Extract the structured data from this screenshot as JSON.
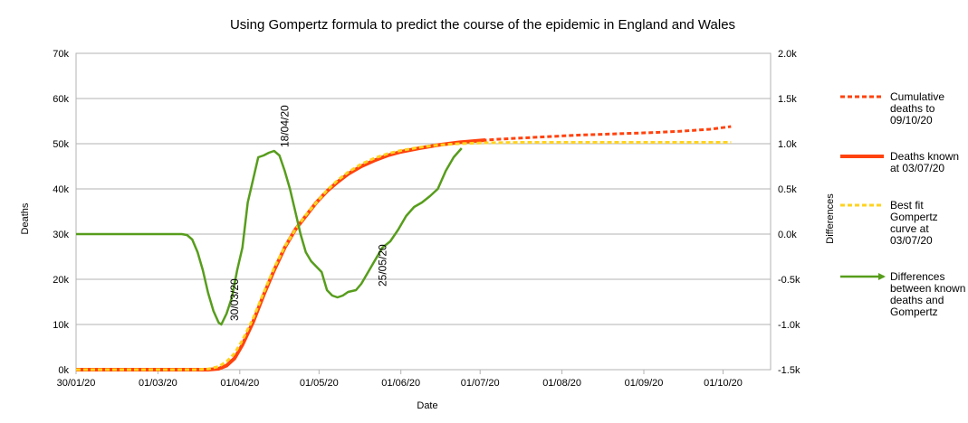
{
  "chart_data": {
    "type": "line",
    "title": "Using Gompertz formula to predict the course of the epidemic in England and Wales",
    "xlabel": "Date",
    "ylabel": "Deaths",
    "y2label": "Differences",
    "x_tick_labels": [
      "30/01/20",
      "01/03/20",
      "01/04/20",
      "01/05/20",
      "01/06/20",
      "01/07/20",
      "01/08/20",
      "01/09/20",
      "01/10/20"
    ],
    "x_tick_days": [
      0,
      31,
      62,
      92,
      123,
      153,
      184,
      215,
      245
    ],
    "x_range_days": [
      0,
      263
    ],
    "y_tick_labels": [
      "0k",
      "10k",
      "20k",
      "30k",
      "40k",
      "50k",
      "60k",
      "70k"
    ],
    "ylim": [
      0,
      70000
    ],
    "y2_tick_labels": [
      "-1.5k",
      "-1.0k",
      "-0.5k",
      "0.0k",
      "0.5k",
      "1.0k",
      "1.5k",
      "2.0k"
    ],
    "y2lim": [
      -1500,
      2000
    ],
    "grid": "horizontal",
    "legend_position": "right",
    "series": [
      {
        "name": "Cumulative deaths to 09/10/20",
        "axis": "left",
        "style": "dotted",
        "color": "#ff420e",
        "points": [
          [
            0,
            0
          ],
          [
            50,
            0
          ],
          [
            54,
            200
          ],
          [
            57,
            900
          ],
          [
            60,
            2500
          ],
          [
            63,
            5500
          ],
          [
            67,
            10500
          ],
          [
            71,
            16500
          ],
          [
            75,
            22000
          ],
          [
            79,
            27000
          ],
          [
            83,
            31000
          ],
          [
            87,
            34000
          ],
          [
            91,
            37000
          ],
          [
            95,
            39500
          ],
          [
            99,
            41500
          ],
          [
            103,
            43300
          ],
          [
            108,
            45000
          ],
          [
            113,
            46300
          ],
          [
            118,
            47400
          ],
          [
            123,
            48200
          ],
          [
            130,
            49000
          ],
          [
            137,
            49700
          ],
          [
            145,
            50300
          ],
          [
            153,
            50700
          ],
          [
            160,
            51000
          ],
          [
            170,
            51300
          ],
          [
            180,
            51600
          ],
          [
            190,
            51900
          ],
          [
            200,
            52100
          ],
          [
            210,
            52300
          ],
          [
            220,
            52500
          ],
          [
            230,
            52800
          ],
          [
            240,
            53200
          ],
          [
            248,
            53800
          ]
        ]
      },
      {
        "name": "Deaths known at 03/07/20",
        "axis": "left",
        "style": "solid",
        "color": "#ff420e",
        "points": [
          [
            0,
            0
          ],
          [
            50,
            0
          ],
          [
            54,
            200
          ],
          [
            57,
            900
          ],
          [
            60,
            2500
          ],
          [
            63,
            5500
          ],
          [
            67,
            10500
          ],
          [
            71,
            16500
          ],
          [
            75,
            22000
          ],
          [
            79,
            27000
          ],
          [
            83,
            31000
          ],
          [
            87,
            34000
          ],
          [
            91,
            37000
          ],
          [
            95,
            39500
          ],
          [
            99,
            41500
          ],
          [
            103,
            43300
          ],
          [
            108,
            45000
          ],
          [
            113,
            46300
          ],
          [
            118,
            47400
          ],
          [
            123,
            48200
          ],
          [
            130,
            49000
          ],
          [
            137,
            49700
          ],
          [
            145,
            50300
          ],
          [
            155,
            50800
          ]
        ]
      },
      {
        "name": "Best fit Gompertz curve at 03/07/20",
        "axis": "left",
        "style": "dotted",
        "color": "#ffd320",
        "points": [
          [
            0,
            0
          ],
          [
            45,
            0
          ],
          [
            50,
            150
          ],
          [
            54,
            700
          ],
          [
            57,
            1800
          ],
          [
            60,
            3600
          ],
          [
            63,
            6500
          ],
          [
            67,
            11300
          ],
          [
            71,
            17000
          ],
          [
            75,
            22500
          ],
          [
            79,
            27200
          ],
          [
            83,
            31000
          ],
          [
            87,
            34200
          ],
          [
            91,
            37000
          ],
          [
            95,
            39700
          ],
          [
            99,
            41900
          ],
          [
            103,
            43700
          ],
          [
            108,
            45500
          ],
          [
            113,
            46800
          ],
          [
            118,
            47800
          ],
          [
            123,
            48500
          ],
          [
            130,
            49200
          ],
          [
            137,
            49700
          ],
          [
            145,
            50000
          ],
          [
            155,
            50200
          ],
          [
            170,
            50300
          ],
          [
            200,
            50300
          ],
          [
            230,
            50300
          ],
          [
            248,
            50300
          ]
        ]
      },
      {
        "name": "Differences between known deaths and Gompertz",
        "axis": "right",
        "style": "solid",
        "color": "#579d1c",
        "points": [
          [
            0,
            0
          ],
          [
            40,
            0
          ],
          [
            42,
            -10
          ],
          [
            44,
            -60
          ],
          [
            46,
            -200
          ],
          [
            48,
            -400
          ],
          [
            50,
            -650
          ],
          [
            52,
            -850
          ],
          [
            54,
            -980
          ],
          [
            55,
            -1000
          ],
          [
            57,
            -880
          ],
          [
            59,
            -700
          ],
          [
            61,
            -400
          ],
          [
            63,
            -150
          ],
          [
            65,
            350
          ],
          [
            67,
            600
          ],
          [
            69,
            850
          ],
          [
            71,
            870
          ],
          [
            73,
            900
          ],
          [
            75,
            920
          ],
          [
            77,
            870
          ],
          [
            79,
            700
          ],
          [
            81,
            500
          ],
          [
            83,
            250
          ],
          [
            85,
            0
          ],
          [
            87,
            -200
          ],
          [
            89,
            -300
          ],
          [
            91,
            -360
          ],
          [
            93,
            -420
          ],
          [
            95,
            -620
          ],
          [
            97,
            -680
          ],
          [
            99,
            -700
          ],
          [
            101,
            -680
          ],
          [
            103,
            -640
          ],
          [
            106,
            -620
          ],
          [
            108,
            -550
          ],
          [
            110,
            -450
          ],
          [
            113,
            -300
          ],
          [
            116,
            -150
          ],
          [
            119,
            -80
          ],
          [
            122,
            50
          ],
          [
            125,
            200
          ],
          [
            128,
            300
          ],
          [
            131,
            350
          ],
          [
            134,
            420
          ],
          [
            137,
            500
          ],
          [
            140,
            700
          ],
          [
            143,
            850
          ],
          [
            146,
            950
          ]
        ]
      }
    ],
    "annotations": [
      {
        "text": "30/03/20",
        "x": 60,
        "axis": "right",
        "y": -1000
      },
      {
        "text": "18/04/20",
        "x": 79,
        "axis": "right",
        "y": 920
      },
      {
        "text": "25/05/20",
        "x": 116,
        "axis": "right",
        "y": -620
      }
    ]
  },
  "colors": {
    "cumulative": "#ff420e",
    "known": "#ff420e",
    "gompertz": "#ffd320",
    "differences": "#579d1c",
    "grid": "#b3b3b3"
  }
}
